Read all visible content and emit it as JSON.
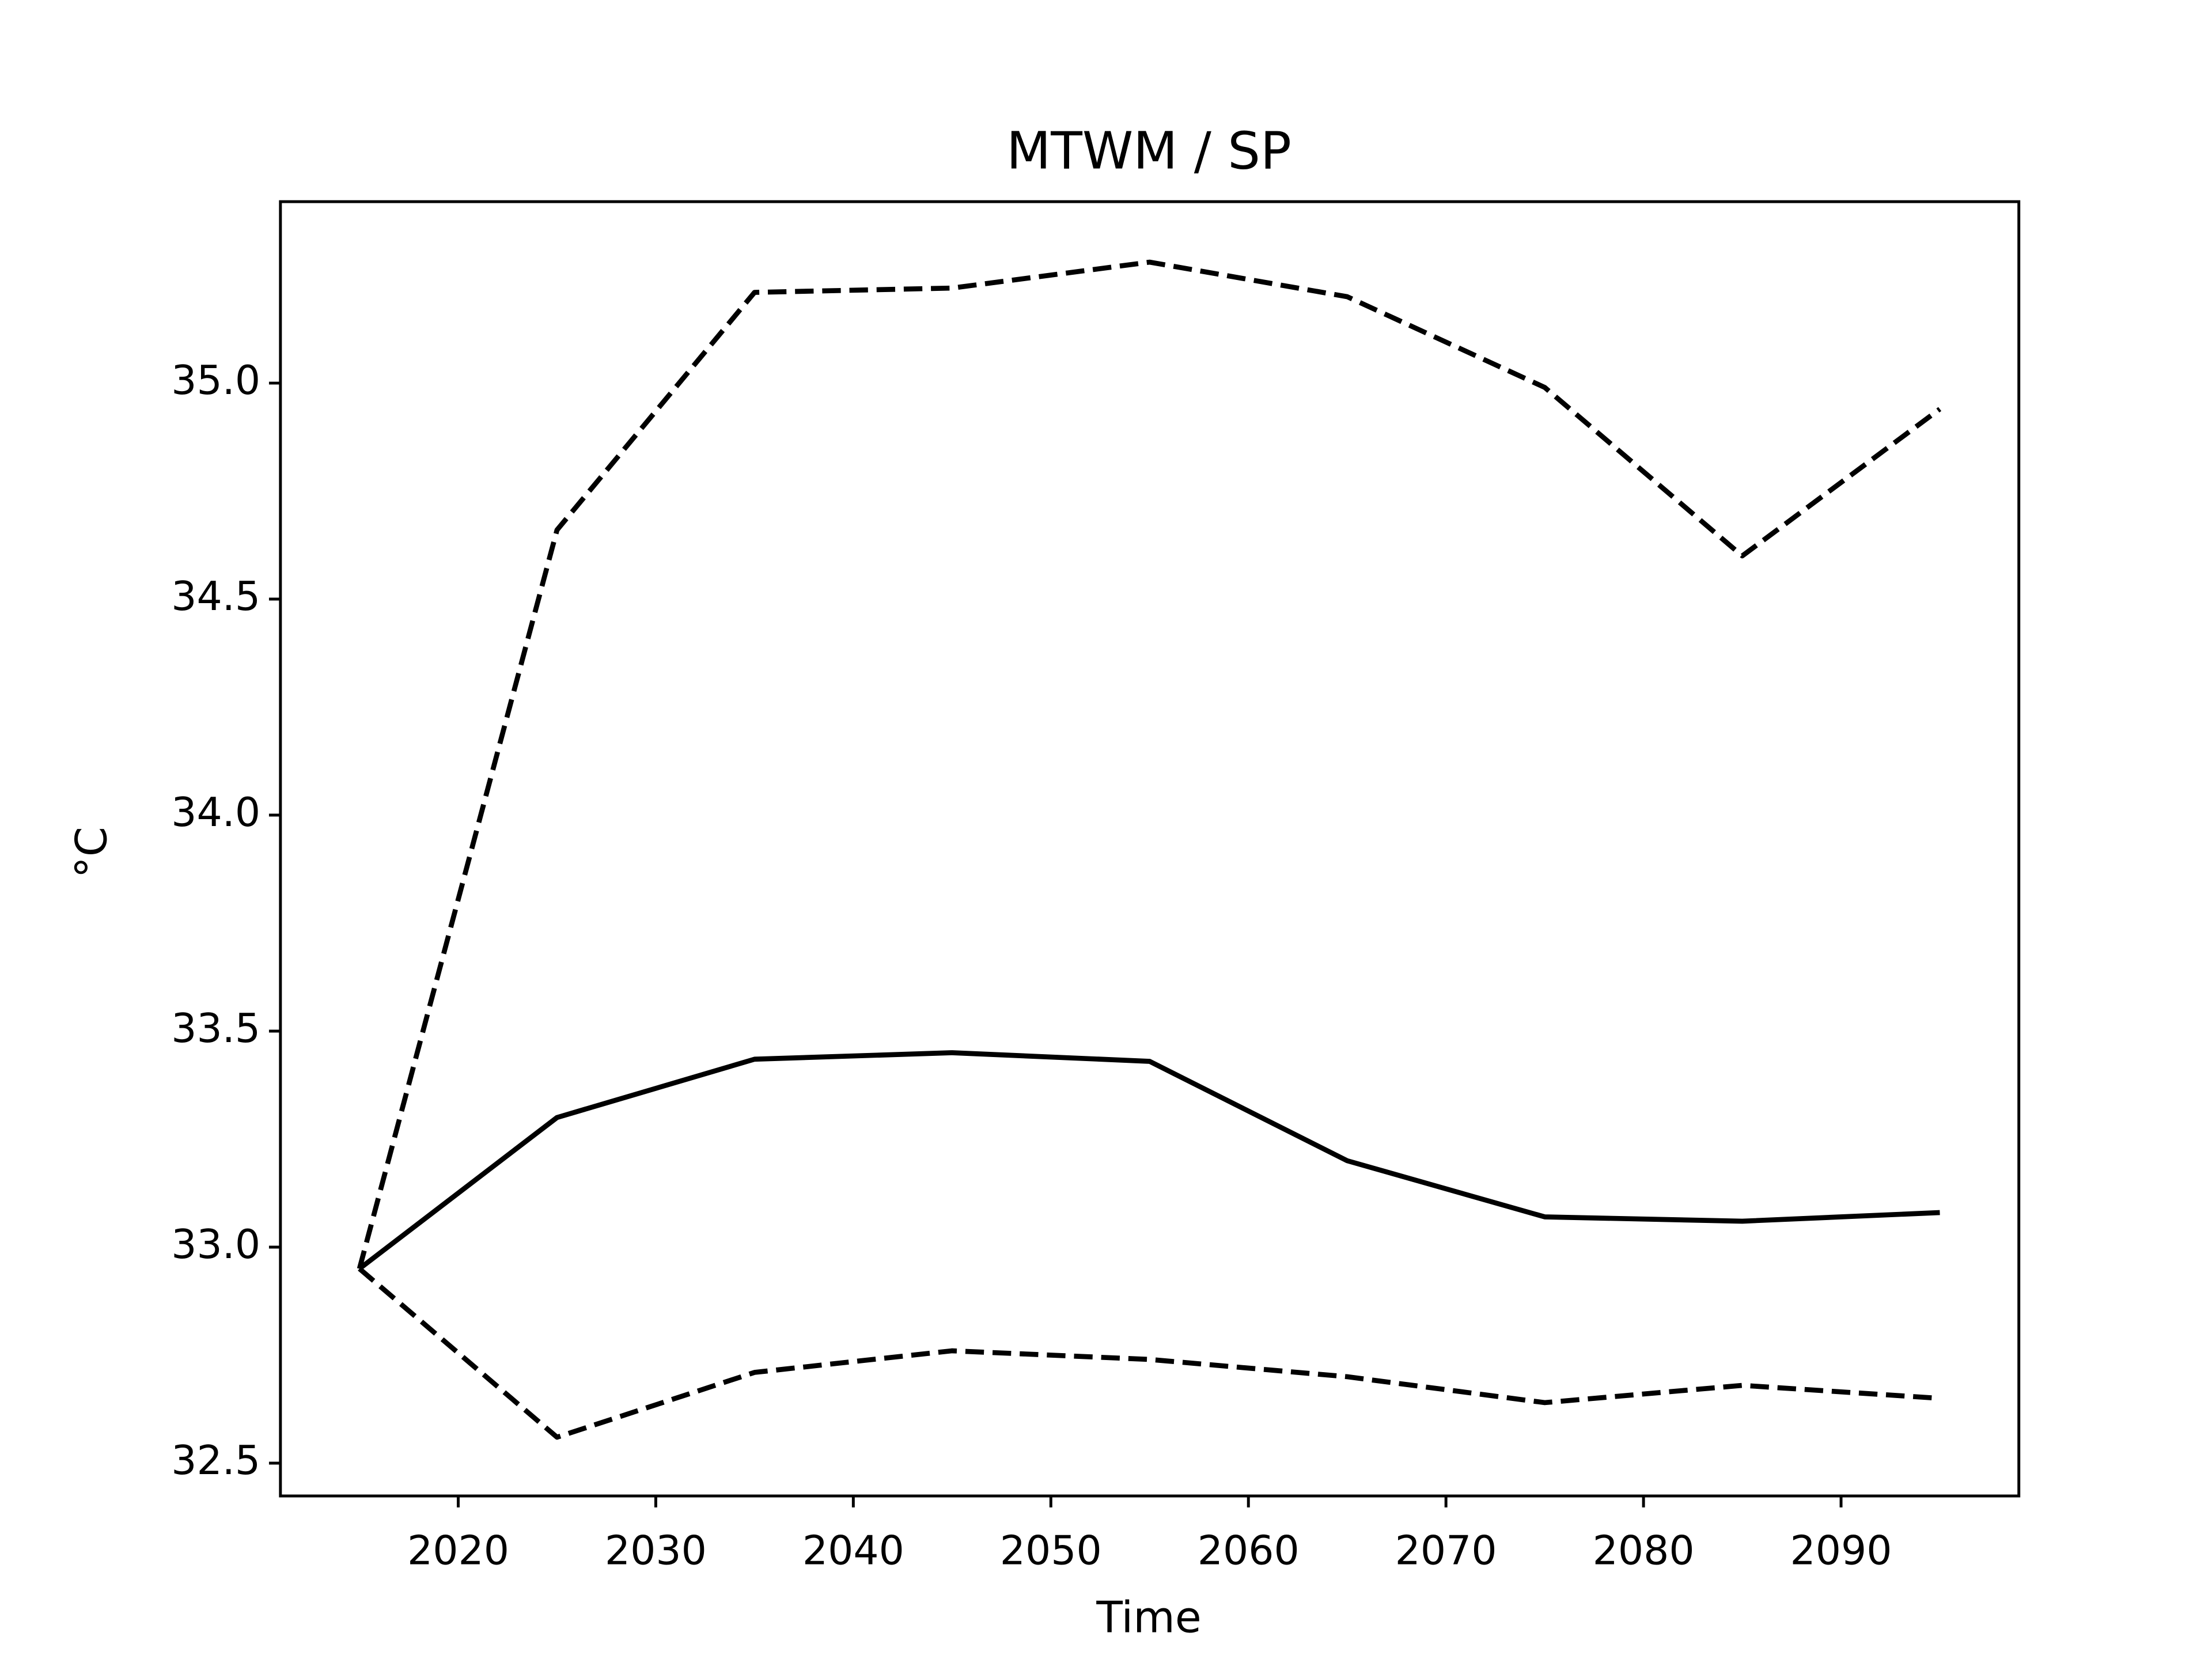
{
  "chart_data": {
    "type": "line",
    "title": "MTWM / SP",
    "xlabel": "Time",
    "ylabel": "°C",
    "x": [
      2015,
      2025,
      2035,
      2045,
      2055,
      2065,
      2075,
      2085,
      2095
    ],
    "series": [
      {
        "color": "#000000",
        "linestyle": "solid",
        "values": [
          32.95,
          33.3,
          33.435,
          33.45,
          33.43,
          33.2,
          33.07,
          33.06,
          33.08
        ]
      },
      {
        "color": "#000000",
        "linestyle": "dashed",
        "values": [
          32.95,
          34.66,
          35.21,
          35.22,
          35.28,
          35.2,
          34.99,
          34.6,
          34.94
        ]
      },
      {
        "color": "#000000",
        "linestyle": "dashed",
        "values": [
          32.95,
          32.56,
          32.71,
          32.76,
          32.74,
          32.7,
          32.64,
          32.68,
          32.65
        ]
      }
    ],
    "xlim": [
      2011,
      2099
    ],
    "xticks": [
      2020,
      2030,
      2040,
      2050,
      2060,
      2070,
      2080,
      2090
    ],
    "ylim": [
      32.424,
      35.42
    ],
    "yticks": [
      {
        "value": 32.5,
        "label": "32.5"
      },
      {
        "value": 33,
        "label": "33.0"
      },
      33.5,
      {
        "value": 34,
        "label": "34.0"
      },
      34.5,
      {
        "value": 35,
        "label": "35.0"
      }
    ],
    "grid": false
  }
}
